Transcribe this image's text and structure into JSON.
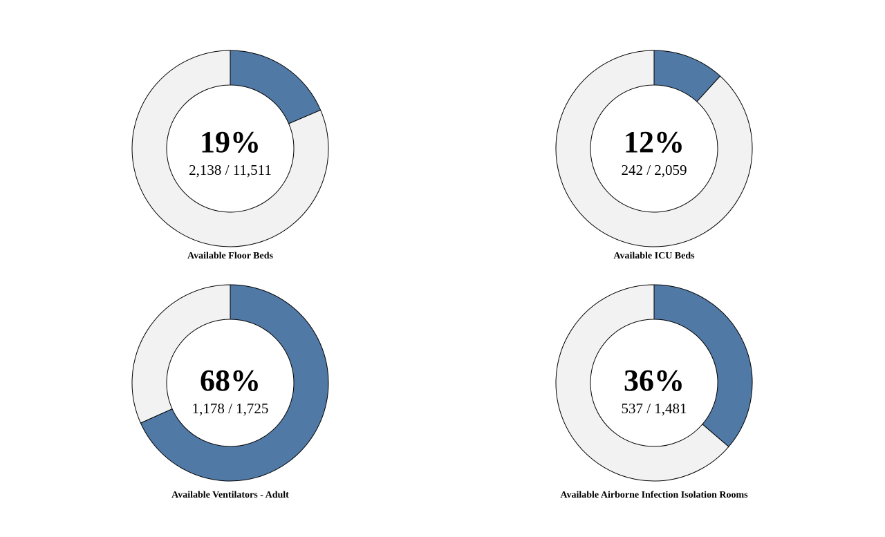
{
  "chart_data": [
    {
      "type": "pie",
      "variant": "donut",
      "percent_label": "19%",
      "ratio_label": "2,138 / 11,511",
      "label": "Available Floor Beds",
      "value": 2138,
      "total": 11511,
      "colors": {
        "filled": "#5079a5",
        "empty": "#f2f2f2"
      }
    },
    {
      "type": "pie",
      "variant": "donut",
      "percent_label": "12%",
      "ratio_label": "242 / 2,059",
      "label": "Available ICU Beds",
      "value": 242,
      "total": 2059,
      "colors": {
        "filled": "#5079a5",
        "empty": "#f2f2f2"
      }
    },
    {
      "type": "pie",
      "variant": "donut",
      "percent_label": "68%",
      "ratio_label": "1,178 / 1,725",
      "label": "Available Ventilators - Adult",
      "value": 1178,
      "total": 1725,
      "colors": {
        "filled": "#5079a5",
        "empty": "#f2f2f2"
      }
    },
    {
      "type": "pie",
      "variant": "donut",
      "percent_label": "36%",
      "ratio_label": "537 / 1,481",
      "label": "Available Airborne Infection Isolation Rooms",
      "value": 537,
      "total": 1481,
      "colors": {
        "filled": "#5079a5",
        "empty": "#f2f2f2"
      }
    }
  ]
}
